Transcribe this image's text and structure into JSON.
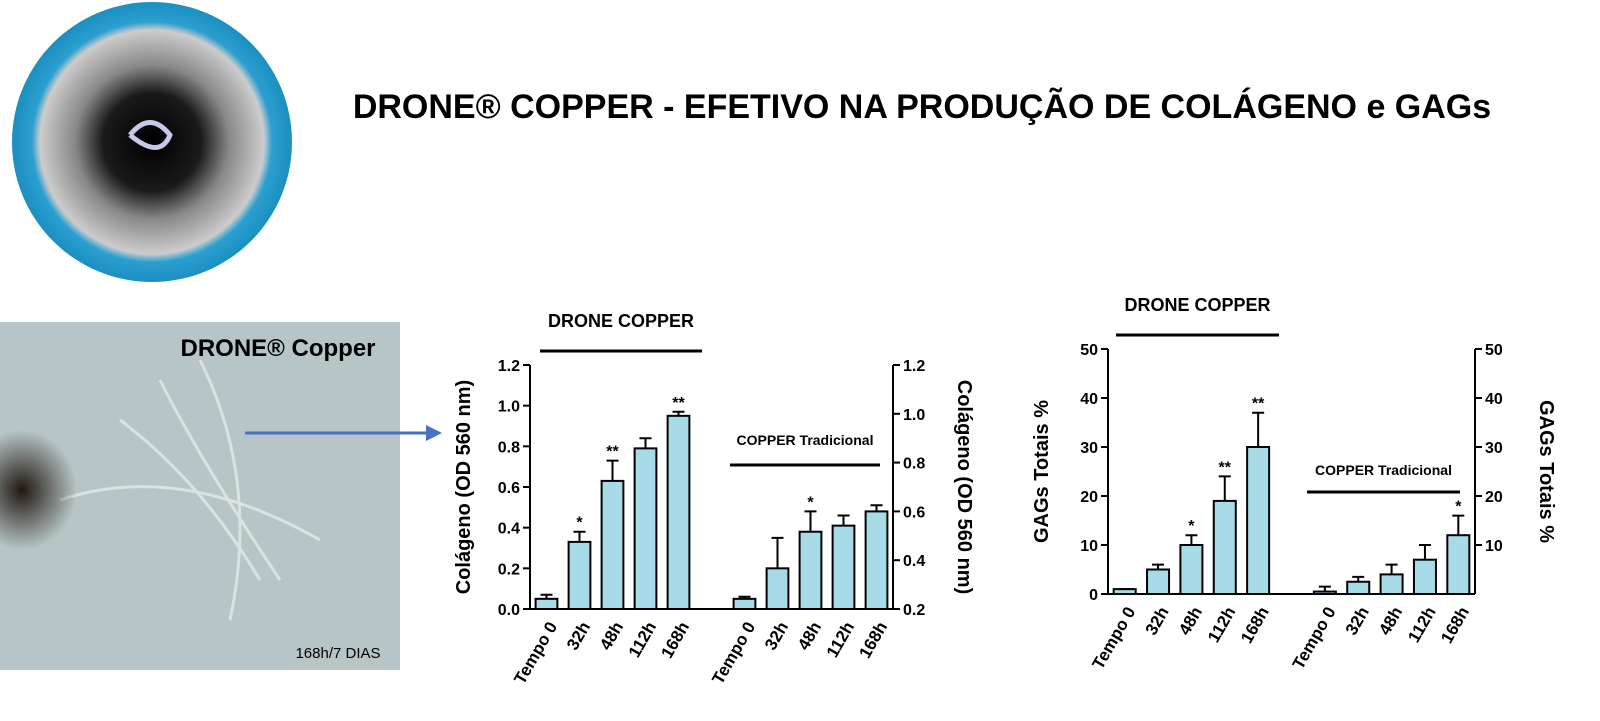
{
  "title": "DRONE® COPPER - EFETIVO NA PRODUÇÃO DE COLÁGENO e GAGs",
  "photo": {
    "label": "DRONE® Copper",
    "caption": "168h/7 DIAS"
  },
  "chart_data": [
    {
      "type": "bar",
      "ylabel": "Colágeno (OD 560 nm)",
      "y2label": "Colágeno (OD 560 nm)",
      "categories": [
        "Tempo 0",
        "32h",
        "48h",
        "112h",
        "168h",
        "Tempo 0",
        "32h",
        "48h",
        "112h",
        "168h"
      ],
      "values": [
        0.05,
        0.33,
        0.63,
        0.79,
        0.95,
        0.05,
        0.2,
        0.38,
        0.41,
        0.48
      ],
      "errors": [
        0.02,
        0.05,
        0.1,
        0.05,
        0.02,
        0.01,
        0.15,
        0.1,
        0.05,
        0.03
      ],
      "annotations": [
        null,
        "*",
        "**",
        null,
        "**",
        null,
        null,
        "*",
        null,
        null
      ],
      "group_labels": [
        "DRONE COPPER",
        "COPPER Tradicional"
      ],
      "color": "#a8dbe8",
      "ylim": [
        0,
        1.2
      ],
      "yticks": [
        {
          "value": 0,
          "label": "0.0"
        },
        0.2,
        0.4,
        0.6,
        0.8,
        {
          "value": 1,
          "label": "1.0"
        },
        0.2,
        {
          "value": 1.2,
          "label": "1.2"
        }
      ],
      "y2lim": [
        0.2,
        1.2
      ],
      "y2ticks": [
        0.2,
        0.4,
        0.6,
        0.8,
        {
          "value": 1,
          "label": "1.0"
        },
        {
          "value": 1.2,
          "label": "1.2"
        }
      ]
    },
    {
      "type": "bar",
      "ylabel": "GAGs Totais %",
      "y2label": "GAGs Totais %",
      "categories": [
        "Tempo 0",
        "32h",
        "48h",
        "112h",
        "168h",
        "Tempo 0",
        "32h",
        "48h",
        "112h",
        "168h"
      ],
      "values": [
        1,
        5,
        10,
        19,
        30,
        0.5,
        2.5,
        4,
        7,
        12
      ],
      "errors": [
        0,
        1,
        2,
        5,
        7,
        1,
        1,
        2,
        3,
        4
      ],
      "annotations": [
        null,
        null,
        "*",
        "**",
        "**",
        null,
        null,
        null,
        null,
        "*"
      ],
      "group_labels": [
        "DRONE COPPER",
        "COPPER Tradicional"
      ],
      "color": "#a8dbe8",
      "ylim": [
        0,
        50
      ],
      "yticks": [
        0,
        10,
        20,
        30,
        40,
        50
      ],
      "y2lim": [
        0,
        50
      ],
      "y2ticks": [
        10,
        20,
        30,
        40,
        50
      ]
    }
  ]
}
